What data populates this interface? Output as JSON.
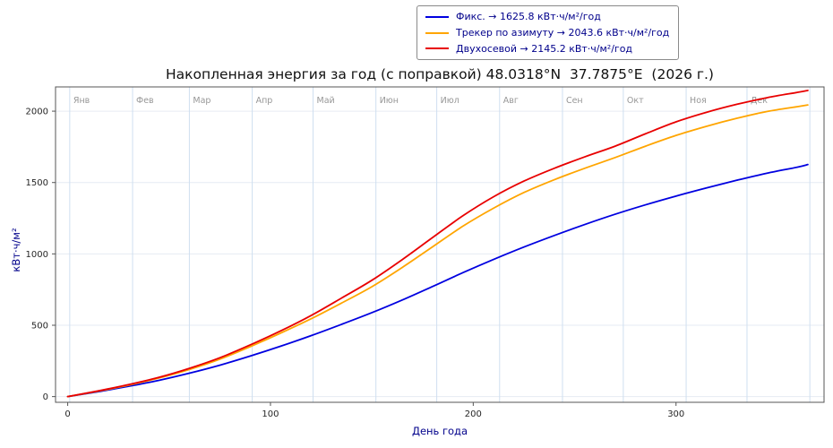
{
  "legend": {
    "items": [
      {
        "label": "Фикс. → 1625.8 кВт·ч/м²/год",
        "color": "#0000e0"
      },
      {
        "label": "Трекер по азимуту → 2043.6 кВт·ч/м²/год",
        "color": "#ffa500"
      },
      {
        "label": "Двухосевой → 2145.2 кВт·ч/м²/год",
        "color": "#e80000"
      }
    ]
  },
  "chart_data": {
    "type": "line",
    "title": "Накопленная энергия за год (с поправкой) 48.0318°N  37.7875°E  (2026 г.)",
    "xlabel": "День года",
    "ylabel": "кВт·ч/м²",
    "xlim": [
      -6,
      373
    ],
    "ylim": [
      -40,
      2170
    ],
    "x_ticks": [
      0,
      100,
      200,
      300
    ],
    "y_ticks": [
      0,
      500,
      1000,
      1500,
      2000
    ],
    "grid": true,
    "legend_position": "top-center-outside",
    "months": [
      {
        "label": "Янв",
        "day": 1
      },
      {
        "label": "Фев",
        "day": 32
      },
      {
        "label": "Мар",
        "day": 60
      },
      {
        "label": "Апр",
        "day": 91
      },
      {
        "label": "Май",
        "day": 121
      },
      {
        "label": "Июн",
        "day": 152
      },
      {
        "label": "Июл",
        "day": 182
      },
      {
        "label": "Авг",
        "day": 213
      },
      {
        "label": "Сен",
        "day": 244
      },
      {
        "label": "Окт",
        "day": 274
      },
      {
        "label": "Ноя",
        "day": 305
      },
      {
        "label": "Дек",
        "day": 335
      },
      {
        "label": "",
        "day": 366
      }
    ],
    "x": [
      0,
      15,
      30,
      45,
      60,
      75,
      90,
      105,
      120,
      135,
      150,
      165,
      180,
      195,
      210,
      225,
      240,
      255,
      270,
      285,
      300,
      315,
      330,
      345,
      360,
      365
    ],
    "series": [
      {
        "name": "Фикс.",
        "annual_total": 1625.8,
        "color": "#0000e0",
        "values": [
          0,
          34,
          72,
          114,
          164,
          220,
          284,
          353,
          427,
          506,
          588,
          677,
          772,
          869,
          961,
          1048,
          1129,
          1206,
          1278,
          1344,
          1405,
          1462,
          1516,
          1566,
          1608,
          1625.8
        ]
      },
      {
        "name": "Трекер по азимуту",
        "annual_total": 2043.6,
        "color": "#ffa500",
        "values": [
          0,
          38,
          80,
          130,
          190,
          262,
          350,
          445,
          545,
          655,
          770,
          905,
          1050,
          1195,
          1320,
          1430,
          1520,
          1600,
          1675,
          1755,
          1830,
          1894,
          1950,
          1998,
          2032,
          2043.6
        ]
      },
      {
        "name": "Двухосевой",
        "annual_total": 2145.2,
        "color": "#e80000",
        "values": [
          0,
          40,
          84,
          135,
          198,
          272,
          362,
          460,
          568,
          690,
          815,
          960,
          1115,
          1268,
          1400,
          1510,
          1600,
          1680,
          1755,
          1842,
          1925,
          1992,
          2048,
          2095,
          2132,
          2145.2
        ]
      }
    ],
    "colors": {
      "vgrid": "#cfdff0",
      "hgrid": "#e6ebf3",
      "frame": "#555555",
      "tick_label": "#262626",
      "month_label": "#979797"
    }
  }
}
